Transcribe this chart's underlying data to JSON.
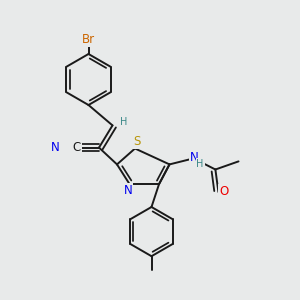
{
  "bg_color": "#e8eaea",
  "bond_color": "#1a1a1a",
  "bond_width": 1.4,
  "dbo": 0.012,
  "atom_colors": {
    "Br": "#cc6600",
    "N": "#0000ee",
    "S": "#b8960a",
    "O": "#ee0000",
    "H": "#3a8888",
    "C": "#1a1a1a"
  },
  "fs": 8.5,
  "fs_small": 7.0
}
